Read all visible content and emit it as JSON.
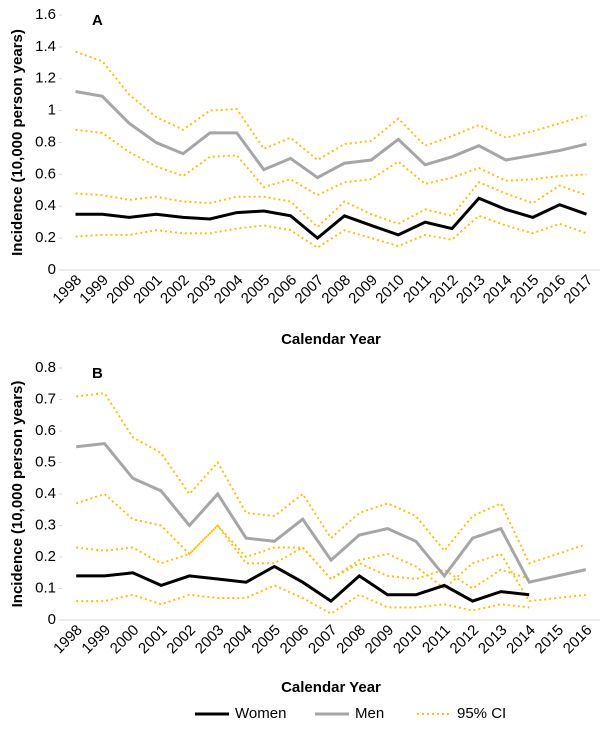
{
  "chart_data": [
    {
      "type": "line",
      "title": "A",
      "x_label": "Calendar Year",
      "y_label": "Incidence (10,000 person years)",
      "categories": [
        "1998",
        "1999",
        "2000",
        "2001",
        "2002",
        "2003",
        "2004",
        "2005",
        "2006",
        "2007",
        "2008",
        "2009",
        "2010",
        "2011",
        "2012",
        "2013",
        "2014",
        "2015",
        "2016",
        "2017"
      ],
      "ylim": [
        0,
        1.6
      ],
      "yticks": [
        0,
        0.2,
        0.4,
        0.6,
        0.8,
        1,
        1.2,
        1.4,
        1.6
      ],
      "ci_label": "95% CI",
      "ci_color": "#ffc000",
      "series": [
        {
          "name": "Women",
          "color": "#000000",
          "values": [
            0.35,
            0.35,
            0.33,
            0.35,
            0.33,
            0.32,
            0.36,
            0.37,
            0.34,
            0.2,
            0.34,
            0.28,
            0.22,
            0.3,
            0.26,
            0.45,
            0.38,
            0.33,
            0.41,
            0.35
          ],
          "ci_upper": [
            0.48,
            0.47,
            0.44,
            0.46,
            0.43,
            0.42,
            0.46,
            0.46,
            0.43,
            0.27,
            0.43,
            0.35,
            0.29,
            0.38,
            0.34,
            0.55,
            0.48,
            0.42,
            0.53,
            0.47
          ],
          "ci_lower": [
            0.21,
            0.22,
            0.22,
            0.25,
            0.23,
            0.23,
            0.26,
            0.28,
            0.25,
            0.14,
            0.25,
            0.2,
            0.15,
            0.22,
            0.19,
            0.34,
            0.28,
            0.23,
            0.29,
            0.23
          ]
        },
        {
          "name": "Men",
          "color": "#a6a6a6",
          "values": [
            1.12,
            1.09,
            0.92,
            0.8,
            0.73,
            0.86,
            0.86,
            0.63,
            0.7,
            0.58,
            0.67,
            0.69,
            0.82,
            0.66,
            0.71,
            0.78,
            0.69,
            0.72,
            0.75,
            0.79
          ],
          "ci_upper": [
            1.37,
            1.31,
            1.1,
            0.96,
            0.88,
            1.0,
            1.01,
            0.76,
            0.83,
            0.69,
            0.79,
            0.81,
            0.95,
            0.78,
            0.84,
            0.91,
            0.83,
            0.87,
            0.92,
            0.97
          ],
          "ci_lower": [
            0.88,
            0.86,
            0.74,
            0.65,
            0.59,
            0.71,
            0.72,
            0.52,
            0.57,
            0.47,
            0.55,
            0.57,
            0.68,
            0.54,
            0.58,
            0.64,
            0.56,
            0.57,
            0.59,
            0.6
          ]
        }
      ]
    },
    {
      "type": "line",
      "title": "B",
      "x_label": "Calendar Year",
      "y_label": "Incidence (10,000 person years)",
      "categories": [
        "1998",
        "1999",
        "2000",
        "2001",
        "2002",
        "2003",
        "2004",
        "2005",
        "2006",
        "2007",
        "2008",
        "2009",
        "2010",
        "2011",
        "2012",
        "2013",
        "2014",
        "2015",
        "2016"
      ],
      "ylim": [
        0,
        0.8
      ],
      "yticks": [
        0,
        0.1,
        0.2,
        0.3,
        0.4,
        0.5,
        0.6,
        0.7,
        0.8
      ],
      "ci_color": "#ffc000",
      "series": [
        {
          "name": "Women",
          "color": "#000000",
          "values": [
            0.14,
            0.14,
            0.15,
            0.11,
            0.14,
            0.13,
            0.12,
            0.17,
            0.12,
            0.06,
            0.14,
            0.08,
            0.08,
            0.11,
            0.06,
            0.09,
            0.08,
            null,
            null
          ],
          "ci_upper": [
            0.23,
            0.22,
            0.23,
            0.18,
            0.21,
            0.3,
            0.2,
            0.23,
            0.23,
            0.13,
            0.18,
            0.14,
            0.13,
            0.16,
            0.1,
            0.16,
            0.13,
            null,
            null
          ],
          "ci_lower": [
            0.06,
            0.06,
            0.08,
            0.05,
            0.08,
            0.07,
            0.07,
            0.11,
            0.07,
            0.02,
            0.08,
            0.04,
            0.04,
            0.05,
            0.03,
            0.05,
            0.04,
            null,
            null
          ]
        },
        {
          "name": "Men",
          "color": "#a6a6a6",
          "values": [
            0.55,
            0.56,
            0.45,
            0.41,
            0.3,
            0.4,
            0.26,
            0.25,
            0.32,
            0.19,
            0.27,
            0.29,
            0.25,
            0.14,
            0.26,
            0.29,
            0.12,
            0.14,
            0.16
          ],
          "ci_upper": [
            0.71,
            0.72,
            0.58,
            0.53,
            0.4,
            0.5,
            0.34,
            0.33,
            0.4,
            0.26,
            0.34,
            0.37,
            0.33,
            0.22,
            0.33,
            0.37,
            0.18,
            0.21,
            0.24
          ],
          "ci_lower": [
            0.37,
            0.4,
            0.32,
            0.3,
            0.21,
            0.3,
            0.18,
            0.18,
            0.23,
            0.13,
            0.19,
            0.21,
            0.17,
            0.1,
            0.18,
            0.21,
            0.06,
            0.07,
            0.08
          ]
        }
      ]
    }
  ]
}
